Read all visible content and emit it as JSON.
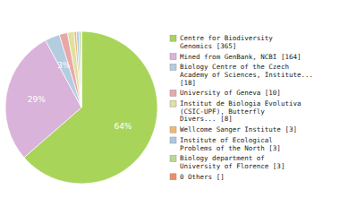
{
  "chart_data": {
    "type": "pie",
    "categories": [
      "Centre for Biodiversity\nGenomics [365]",
      "Mined from GenBank, NCBI [164]",
      "Biology Centre of the Czech\nAcademy of Sciences, Institute...\n[18]",
      "University of Geneva [10]",
      "Institut de Biologia Evolutiva\n(CSIC-UPF), Butterfly\nDivers... [8]",
      "Wellcome Sanger Institute [3]",
      "Institute of Ecological\nProblems of the North [3]",
      "Biology department of\nUniversity of Florence [3]",
      "0 Others []"
    ],
    "values": [
      63.59,
      28.57,
      3.14,
      1.74,
      1.39,
      0.52,
      0.52,
      0.52,
      0
    ],
    "value_labels": [
      "64%",
      "29%",
      "3%",
      null,
      null,
      null,
      null,
      null,
      null
    ],
    "colors": [
      "#a8d45a",
      "#d9b3d9",
      "#b3cce0",
      "#e8a8a8",
      "#e0e0a0",
      "#f0b870",
      "#a8c8e0",
      "#b8d898",
      "#e8906a"
    ],
    "data_labels": true,
    "legend": "right"
  }
}
